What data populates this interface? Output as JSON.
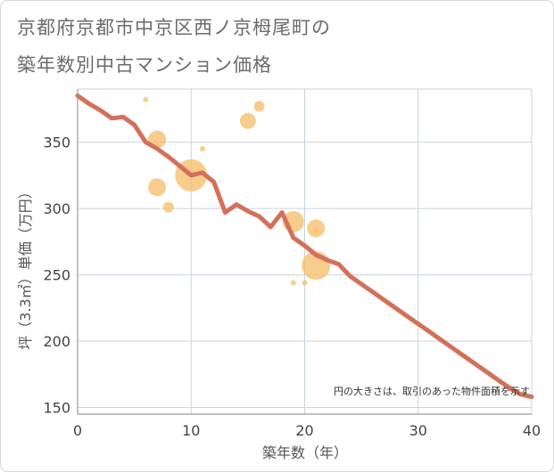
{
  "chart_data": {
    "type": "scatter",
    "title_line1": "京都府京都市中京区西ノ京栂尾町の",
    "title_line2": "築年数別中古マンション価格",
    "xlabel": "築年数（年）",
    "ylabel": "坪（3.3㎡）単価（万円）",
    "xlim": [
      0,
      40
    ],
    "ylim": [
      145,
      390
    ],
    "x_ticks": [
      0,
      10,
      20,
      30,
      40
    ],
    "y_ticks": [
      150,
      200,
      250,
      300,
      350
    ],
    "grid": true,
    "note": "円の大きさは、取引のあった物件面積を示す",
    "colors": {
      "bubble": "#f5c06e",
      "trend": "#d4705a",
      "grid": "#c9d3de",
      "axis": "#999999"
    },
    "bubbles": [
      {
        "x": 6,
        "y": 382,
        "size": 3
      },
      {
        "x": 7,
        "y": 352,
        "size": 10
      },
      {
        "x": 7,
        "y": 347,
        "size": 3
      },
      {
        "x": 7,
        "y": 316,
        "size": 10
      },
      {
        "x": 8,
        "y": 301,
        "size": 6
      },
      {
        "x": 10,
        "y": 325,
        "size": 18
      },
      {
        "x": 11,
        "y": 345,
        "size": 3
      },
      {
        "x": 15,
        "y": 366,
        "size": 9
      },
      {
        "x": 16,
        "y": 377,
        "size": 6
      },
      {
        "x": 19,
        "y": 290,
        "size": 12
      },
      {
        "x": 19,
        "y": 244,
        "size": 3
      },
      {
        "x": 20,
        "y": 244,
        "size": 3
      },
      {
        "x": 21,
        "y": 285,
        "size": 10
      },
      {
        "x": 21,
        "y": 283,
        "size": 3
      },
      {
        "x": 21,
        "y": 257,
        "size": 16
      }
    ],
    "trend": {
      "x": [
        0,
        1,
        2,
        3,
        4,
        5,
        6,
        7,
        8,
        9,
        10,
        11,
        12,
        13,
        14,
        15,
        16,
        17,
        18,
        19,
        20,
        21,
        22,
        23,
        24,
        25,
        26,
        27,
        28,
        29,
        30,
        31,
        32,
        33,
        34,
        35,
        36,
        37,
        38,
        39,
        40
      ],
      "y": [
        385,
        379,
        374,
        368,
        369,
        363,
        350,
        345,
        339,
        332,
        325,
        327,
        320,
        297,
        303,
        298,
        294,
        286,
        297,
        278,
        272,
        265,
        261,
        258,
        249,
        243,
        237,
        231,
        225,
        219,
        213,
        207,
        201,
        195,
        189,
        183,
        177,
        171,
        165,
        160,
        158
      ]
    }
  }
}
